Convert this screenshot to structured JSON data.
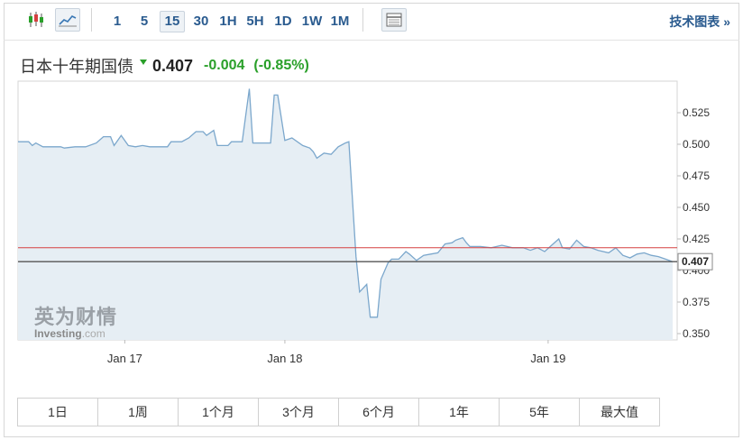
{
  "toolbar": {
    "icons": [
      "candlestick-icon",
      "line-chart-icon",
      "table-icon"
    ],
    "intervals": [
      "1",
      "5",
      "15",
      "30",
      "1H",
      "5H",
      "1D",
      "1W",
      "1M"
    ],
    "active_interval": "15",
    "tech_chart_label": "技术图表 »"
  },
  "instrument": {
    "name": "日本十年期国债",
    "last": "0.407",
    "change": "-0.004",
    "change_pct": "(-0.85%)",
    "direction_icon": "arrow-down-icon"
  },
  "colors": {
    "line": "#7ba7cc",
    "area": "#e6eef4",
    "prev_close_line": "#d64040",
    "last_price_line": "#555555",
    "down": "#2aa02a",
    "accent": "#2a5b8f"
  },
  "logo": {
    "cn": "英为财情",
    "en": "Investing",
    "en_suffix": ".com"
  },
  "ranges": [
    "1日",
    "1周",
    "1个月",
    "3个月",
    "6个月",
    "1年",
    "5年",
    "最大值"
  ],
  "chart_data": {
    "type": "area",
    "ylim": [
      0.345,
      0.55
    ],
    "yticks": [
      0.35,
      0.375,
      0.4,
      0.425,
      0.45,
      0.475,
      0.5,
      0.525
    ],
    "ytick_labels": [
      "0.350",
      "0.375",
      "0.400",
      "0.425",
      "0.450",
      "0.475",
      "0.500",
      "0.525"
    ],
    "xlim": [
      0,
      184
    ],
    "xticks": [
      {
        "x": 30,
        "label": "Jan 17"
      },
      {
        "x": 75,
        "label": "Jan 18"
      },
      {
        "x": 149,
        "label": "Jan 19"
      }
    ],
    "reference_line": 0.418,
    "last_value": 0.407,
    "last_label": "0.407",
    "points": [
      [
        0,
        0.502
      ],
      [
        3,
        0.502
      ],
      [
        4,
        0.499
      ],
      [
        5,
        0.501
      ],
      [
        7,
        0.498
      ],
      [
        9,
        0.498
      ],
      [
        12,
        0.498
      ],
      [
        13,
        0.497
      ],
      [
        16,
        0.498
      ],
      [
        19,
        0.498
      ],
      [
        22,
        0.501
      ],
      [
        24,
        0.506
      ],
      [
        26,
        0.506
      ],
      [
        27,
        0.499
      ],
      [
        29,
        0.507
      ],
      [
        31,
        0.499
      ],
      [
        33,
        0.498
      ],
      [
        35,
        0.499
      ],
      [
        37,
        0.498
      ],
      [
        42,
        0.498
      ],
      [
        43,
        0.502
      ],
      [
        46,
        0.502
      ],
      [
        48,
        0.505
      ],
      [
        50,
        0.51
      ],
      [
        52,
        0.51
      ],
      [
        53,
        0.507
      ],
      [
        55,
        0.511
      ],
      [
        56,
        0.499
      ],
      [
        59,
        0.499
      ],
      [
        60,
        0.502
      ],
      [
        63,
        0.502
      ],
      [
        65,
        0.544
      ],
      [
        66,
        0.501
      ],
      [
        71,
        0.501
      ],
      [
        72,
        0.539
      ],
      [
        73,
        0.539
      ],
      [
        75,
        0.503
      ],
      [
        77,
        0.505
      ],
      [
        80,
        0.499
      ],
      [
        82,
        0.497
      ],
      [
        83,
        0.494
      ],
      [
        84,
        0.489
      ],
      [
        86,
        0.493
      ],
      [
        88,
        0.492
      ],
      [
        90,
        0.498
      ],
      [
        92,
        0.501
      ],
      [
        93,
        0.502
      ],
      [
        95,
        0.411
      ],
      [
        96,
        0.383
      ],
      [
        98,
        0.389
      ],
      [
        99,
        0.363
      ],
      [
        101,
        0.363
      ],
      [
        102,
        0.393
      ],
      [
        104,
        0.406
      ],
      [
        105,
        0.409
      ],
      [
        107,
        0.409
      ],
      [
        109,
        0.415
      ],
      [
        110,
        0.413
      ],
      [
        112,
        0.408
      ],
      [
        114,
        0.412
      ],
      [
        116,
        0.413
      ],
      [
        118,
        0.414
      ],
      [
        120,
        0.421
      ],
      [
        122,
        0.422
      ],
      [
        123,
        0.424
      ],
      [
        125,
        0.426
      ],
      [
        126,
        0.422
      ],
      [
        127,
        0.419
      ],
      [
        130,
        0.419
      ],
      [
        133,
        0.418
      ],
      [
        136,
        0.42
      ],
      [
        139,
        0.418
      ],
      [
        142,
        0.418
      ],
      [
        144,
        0.416
      ],
      [
        146,
        0.418
      ],
      [
        148,
        0.415
      ],
      [
        150,
        0.42
      ],
      [
        152,
        0.425
      ],
      [
        153,
        0.418
      ],
      [
        155,
        0.417
      ],
      [
        157,
        0.424
      ],
      [
        159,
        0.419
      ],
      [
        161,
        0.418
      ],
      [
        163,
        0.416
      ],
      [
        166,
        0.414
      ],
      [
        168,
        0.418
      ],
      [
        170,
        0.412
      ],
      [
        172,
        0.41
      ],
      [
        174,
        0.413
      ],
      [
        176,
        0.414
      ],
      [
        178,
        0.412
      ],
      [
        180,
        0.411
      ],
      [
        182,
        0.409
      ],
      [
        184,
        0.407
      ]
    ]
  }
}
